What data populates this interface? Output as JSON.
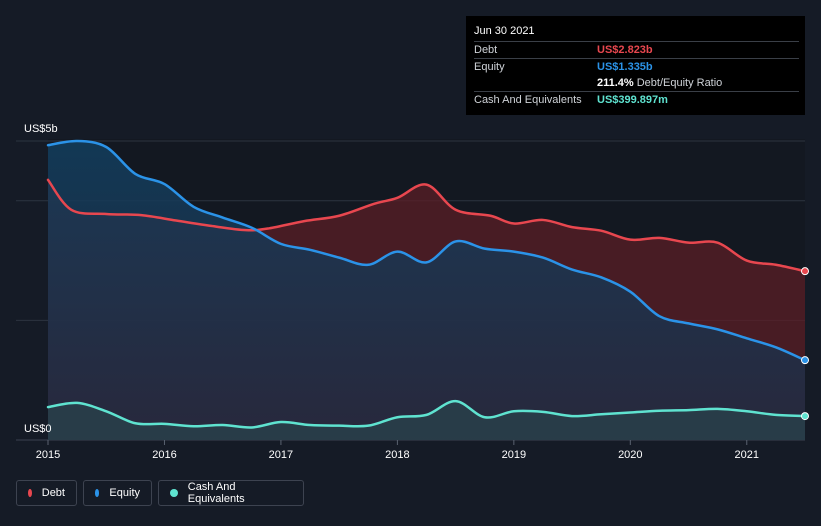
{
  "tooltip": {
    "date": "Jun 30 2021",
    "rows": [
      {
        "label": "Debt",
        "value": "US$2.823b",
        "color": "#e8474f"
      },
      {
        "label": "Equity",
        "value": "US$1.335b",
        "color": "#2b93e8"
      },
      {
        "label": "",
        "value": "211.4%",
        "sub": "Debt/Equity Ratio",
        "color": "#ffffff"
      },
      {
        "label": "Cash And Equivalents",
        "value": "US$399.897m",
        "color": "#5fe3d0"
      }
    ]
  },
  "legend": [
    {
      "label": "Debt",
      "color": "#e8474f"
    },
    {
      "label": "Equity",
      "color": "#2b93e8"
    },
    {
      "label": "Cash And Equivalents",
      "color": "#5fe3d0"
    }
  ],
  "chart_data": {
    "type": "area",
    "y_axis_labels": [
      "US$5b",
      "US$0"
    ],
    "ylim": [
      0,
      5
    ],
    "unit": "US$ billions",
    "xlim": [
      2015.0,
      2021.5
    ],
    "x_ticks": [
      "2015",
      "2016",
      "2017",
      "2018",
      "2019",
      "2020",
      "2021"
    ],
    "grid": true,
    "legend_position": "bottom-left",
    "series": [
      {
        "name": "Debt",
        "color": "#e8474f",
        "points": [
          [
            2015.0,
            4.35
          ],
          [
            2015.2,
            3.85
          ],
          [
            2015.5,
            3.78
          ],
          [
            2015.8,
            3.76
          ],
          [
            2016.1,
            3.67
          ],
          [
            2016.4,
            3.58
          ],
          [
            2016.7,
            3.51
          ],
          [
            2016.9,
            3.54
          ],
          [
            2017.2,
            3.66
          ],
          [
            2017.5,
            3.75
          ],
          [
            2017.8,
            3.95
          ],
          [
            2018.0,
            4.05
          ],
          [
            2018.25,
            4.27
          ],
          [
            2018.5,
            3.85
          ],
          [
            2018.8,
            3.75
          ],
          [
            2019.0,
            3.62
          ],
          [
            2019.25,
            3.68
          ],
          [
            2019.5,
            3.56
          ],
          [
            2019.75,
            3.5
          ],
          [
            2020.0,
            3.35
          ],
          [
            2020.25,
            3.38
          ],
          [
            2020.5,
            3.3
          ],
          [
            2020.75,
            3.3
          ],
          [
            2021.0,
            3.0
          ],
          [
            2021.25,
            2.93
          ],
          [
            2021.5,
            2.823
          ]
        ]
      },
      {
        "name": "Equity",
        "color": "#2b93e8",
        "points": [
          [
            2015.0,
            4.93
          ],
          [
            2015.25,
            5.0
          ],
          [
            2015.5,
            4.9
          ],
          [
            2015.75,
            4.45
          ],
          [
            2016.0,
            4.28
          ],
          [
            2016.25,
            3.9
          ],
          [
            2016.5,
            3.72
          ],
          [
            2016.75,
            3.55
          ],
          [
            2017.0,
            3.28
          ],
          [
            2017.25,
            3.18
          ],
          [
            2017.5,
            3.05
          ],
          [
            2017.75,
            2.93
          ],
          [
            2018.0,
            3.15
          ],
          [
            2018.25,
            2.97
          ],
          [
            2018.5,
            3.32
          ],
          [
            2018.75,
            3.2
          ],
          [
            2019.0,
            3.15
          ],
          [
            2019.25,
            3.05
          ],
          [
            2019.5,
            2.85
          ],
          [
            2019.75,
            2.72
          ],
          [
            2020.0,
            2.48
          ],
          [
            2020.25,
            2.07
          ],
          [
            2020.5,
            1.95
          ],
          [
            2020.75,
            1.85
          ],
          [
            2021.0,
            1.7
          ],
          [
            2021.25,
            1.55
          ],
          [
            2021.5,
            1.335
          ]
        ]
      },
      {
        "name": "Cash And Equivalents",
        "color": "#5fe3d0",
        "points": [
          [
            2015.0,
            0.55
          ],
          [
            2015.25,
            0.62
          ],
          [
            2015.5,
            0.48
          ],
          [
            2015.75,
            0.28
          ],
          [
            2016.0,
            0.27
          ],
          [
            2016.25,
            0.23
          ],
          [
            2016.5,
            0.25
          ],
          [
            2016.75,
            0.21
          ],
          [
            2017.0,
            0.3
          ],
          [
            2017.25,
            0.25
          ],
          [
            2017.5,
            0.24
          ],
          [
            2017.75,
            0.24
          ],
          [
            2018.0,
            0.38
          ],
          [
            2018.25,
            0.42
          ],
          [
            2018.5,
            0.65
          ],
          [
            2018.75,
            0.38
          ],
          [
            2019.0,
            0.48
          ],
          [
            2019.25,
            0.47
          ],
          [
            2019.5,
            0.4
          ],
          [
            2019.75,
            0.43
          ],
          [
            2020.0,
            0.46
          ],
          [
            2020.25,
            0.49
          ],
          [
            2020.5,
            0.5
          ],
          [
            2020.75,
            0.52
          ],
          [
            2021.0,
            0.48
          ],
          [
            2021.25,
            0.42
          ],
          [
            2021.5,
            0.4
          ]
        ]
      }
    ]
  }
}
